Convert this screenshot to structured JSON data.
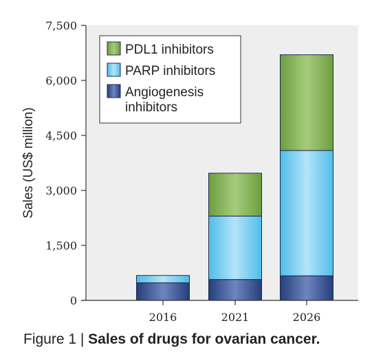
{
  "chart_data": {
    "type": "bar",
    "stacked": true,
    "categories": [
      "2016",
      "2021",
      "2026"
    ],
    "series": [
      {
        "name": "Angiogenesis inhibitors",
        "values": [
          480,
          570,
          670
        ],
        "color": "#2a4a8c"
      },
      {
        "name": "PARP inhibitors",
        "values": [
          200,
          1730,
          3420
        ],
        "color": "#5cc4ee"
      },
      {
        "name": "PDL1 inhibitors",
        "values": [
          0,
          1170,
          2610
        ],
        "color": "#7aaa4a"
      }
    ],
    "legend_order": [
      2,
      1,
      0
    ],
    "ylabel": "Sales (US$ million)",
    "ylim": [
      0,
      7500
    ],
    "yticks": [
      0,
      1500,
      3000,
      4500,
      6000,
      7500
    ],
    "ytick_labels": [
      "0",
      "1,500",
      "3,000",
      "4,500",
      "6,000",
      "7,500"
    ],
    "legend_position": "top-left",
    "background": "#eeeeee",
    "grid": false
  },
  "caption": {
    "label": "Figure 1 | ",
    "text": "Sales of drugs for ovarian cancer."
  }
}
